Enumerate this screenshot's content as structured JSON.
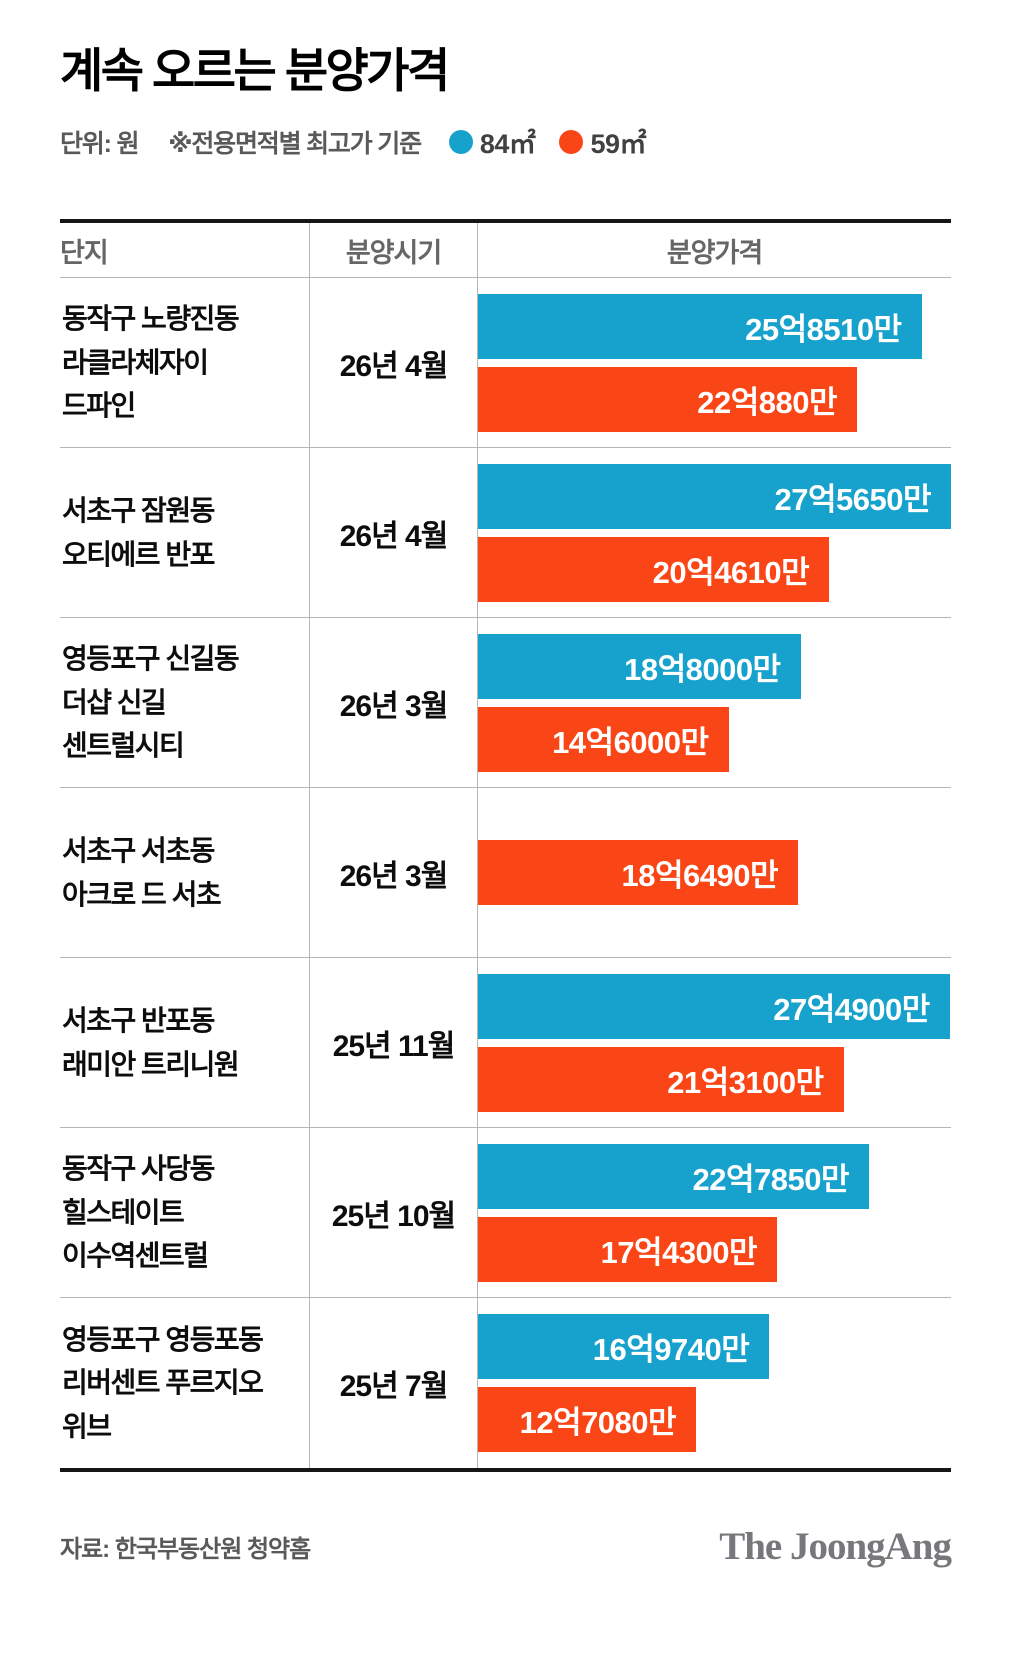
{
  "header": {
    "title": "계속 오르는 분양가격",
    "unit_label": "단위: 원",
    "note": "※전용면적별 최고가 기준"
  },
  "table": {
    "headers": [
      "단지",
      "분양시기",
      "분양가격"
    ]
  },
  "footer": {
    "source": "자료: 한국부동산원 청약홈",
    "logo": "The JoongAng"
  },
  "chart_data": {
    "type": "bar",
    "orientation": "horizontal",
    "title": "계속 오르는 분양가격",
    "unit_label": "단위: 원",
    "note": "※전용면적별 최고가 기준",
    "value_unit": "억원",
    "xlim": [
      0,
      27.565
    ],
    "grid": false,
    "legend_position": "top",
    "categories": [
      "동작구 노량진동 라클라체자이 드파인",
      "서초구 잠원동 오티에르 반포",
      "영등포구 신길동 더샵 신길 센트럴시티",
      "서초구 서초동 아크로 드 서초",
      "서초구 반포동 래미안 트리니원",
      "동작구 사당동 힐스테이트 이수역센트럴",
      "영등포구 영등포동 리버센트 푸르지오 위브"
    ],
    "category_lines": [
      [
        "동작구 노량진동",
        "라클라체자이",
        "드파인"
      ],
      [
        "서초구 잠원동",
        "오티에르 반포"
      ],
      [
        "영등포구 신길동",
        "더샵 신길",
        "센트럴시티"
      ],
      [
        "서초구 서초동",
        "아크로 드 서초"
      ],
      [
        "서초구 반포동",
        "래미안 트리니원"
      ],
      [
        "동작구 사당동",
        "힐스테이트",
        "이수역센트럴"
      ],
      [
        "영등포구 영등포동",
        "리버센트 푸르지오",
        "위브"
      ]
    ],
    "periods": [
      "26년 4월",
      "26년 4월",
      "26년 3월",
      "26년 3월",
      "25년 11월",
      "25년 10월",
      "25년 7월"
    ],
    "series": [
      {
        "name": "84㎡",
        "color": "#17a2cd",
        "values": [
          25.851,
          27.565,
          18.8,
          null,
          27.49,
          22.785,
          16.974
        ],
        "labels": [
          "25억8510만",
          "27억5650만",
          "18억8000만",
          null,
          "27억4900만",
          "22억7850만",
          "16억9740만"
        ]
      },
      {
        "name": "59㎡",
        "color": "#fa4616",
        "values": [
          22.088,
          20.461,
          14.6,
          18.649,
          21.31,
          17.43,
          12.708
        ],
        "labels": [
          "22억880만",
          "20억4610만",
          "14억6000만",
          "18억6490만",
          "21억3100만",
          "17억4300만",
          "12억7080만"
        ]
      }
    ]
  }
}
